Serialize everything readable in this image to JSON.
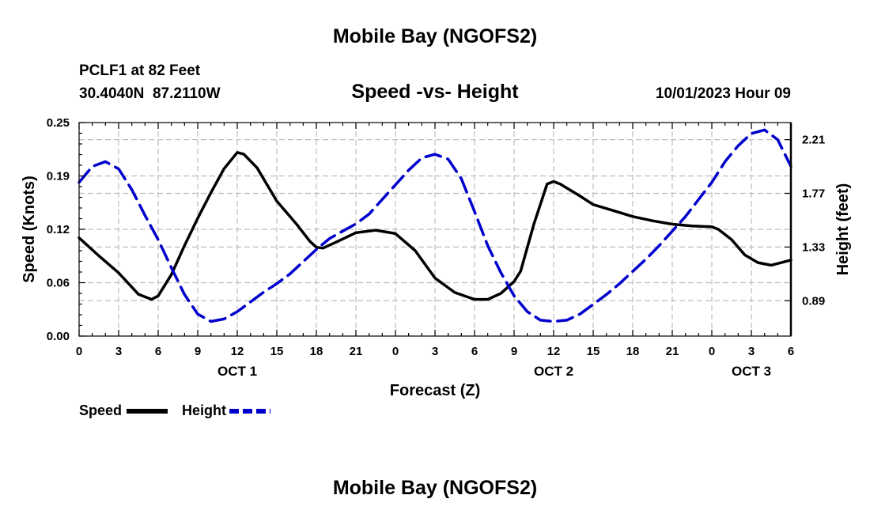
{
  "page": {
    "title_top": "Mobile Bay (NGOFS2)",
    "title_bottom": "Mobile Bay (NGOFS2)",
    "station": "PCLF1 at 82 Feet",
    "coords": "30.4040N  87.2110W",
    "date": "10/01/2023 Hour 09"
  },
  "chart_data": {
    "type": "line",
    "title": "Speed -vs- Height",
    "xlabel": "Forecast (Z)",
    "ylabel_left": "Speed (Knots)",
    "ylabel_right": "Height (feet)",
    "x_range_hours": [
      0,
      54
    ],
    "x_ticks": [
      {
        "h": 0,
        "label": "0"
      },
      {
        "h": 3,
        "label": "3"
      },
      {
        "h": 6,
        "label": "6"
      },
      {
        "h": 9,
        "label": "9"
      },
      {
        "h": 12,
        "label": "12"
      },
      {
        "h": 15,
        "label": "15"
      },
      {
        "h": 18,
        "label": "18"
      },
      {
        "h": 21,
        "label": "21"
      },
      {
        "h": 24,
        "label": "0"
      },
      {
        "h": 27,
        "label": "3"
      },
      {
        "h": 30,
        "label": "6"
      },
      {
        "h": 33,
        "label": "9"
      },
      {
        "h": 36,
        "label": "12"
      },
      {
        "h": 39,
        "label": "15"
      },
      {
        "h": 42,
        "label": "18"
      },
      {
        "h": 45,
        "label": "21"
      },
      {
        "h": 48,
        "label": "0"
      },
      {
        "h": 51,
        "label": "3"
      },
      {
        "h": 54,
        "label": "6"
      }
    ],
    "day_labels": [
      {
        "h": 12,
        "label": "OCT 1"
      },
      {
        "h": 36,
        "label": "OCT 2"
      },
      {
        "h": 51,
        "label": "OCT 3"
      }
    ],
    "y_left": {
      "min": 0,
      "max": 0.25,
      "ticks": [
        {
          "v": 0,
          "label": "0.00"
        },
        {
          "v": 0.0625,
          "label": "0.06"
        },
        {
          "v": 0.125,
          "label": "0.12"
        },
        {
          "v": 0.1875,
          "label": "0.19"
        },
        {
          "v": 0.25,
          "label": "0.25"
        }
      ]
    },
    "y_right": {
      "min": 0.6,
      "max": 2.35,
      "ticks": [
        {
          "v": 0.89,
          "label": "0.89"
        },
        {
          "v": 1.33,
          "label": "1.33"
        },
        {
          "v": 1.77,
          "label": "1.77"
        },
        {
          "v": 2.21,
          "label": "2.21"
        }
      ]
    },
    "series": [
      {
        "name": "Speed",
        "axis": "left",
        "color": "#000000",
        "style": "solid",
        "x": [
          0,
          1.5,
          3,
          4.5,
          5.5,
          6,
          7,
          8,
          9,
          10,
          11,
          12,
          12.5,
          13.5,
          15,
          16.5,
          17.5,
          18,
          18.5,
          19.5,
          21,
          22.5,
          24,
          25.5,
          27,
          28.5,
          30,
          31,
          32,
          33,
          33.5,
          34.5,
          35.5,
          36,
          36.5,
          38,
          39,
          40.5,
          42,
          43.5,
          45,
          46.5,
          48,
          48.5,
          49.5,
          50.5,
          51.5,
          52.5,
          54
        ],
        "y": [
          0.115,
          0.094,
          0.074,
          0.049,
          0.043,
          0.047,
          0.072,
          0.106,
          0.138,
          0.168,
          0.196,
          0.215,
          0.213,
          0.197,
          0.158,
          0.131,
          0.111,
          0.104,
          0.103,
          0.11,
          0.121,
          0.124,
          0.12,
          0.1,
          0.068,
          0.051,
          0.043,
          0.043,
          0.05,
          0.064,
          0.076,
          0.131,
          0.178,
          0.181,
          0.178,
          0.164,
          0.154,
          0.147,
          0.14,
          0.135,
          0.131,
          0.129,
          0.128,
          0.125,
          0.113,
          0.095,
          0.086,
          0.083,
          0.089
        ]
      },
      {
        "name": "Height",
        "axis": "right",
        "color": "#0000cc",
        "style": "dashed",
        "x": [
          0,
          1,
          2,
          3,
          4,
          5,
          6,
          7,
          8,
          9,
          10,
          11,
          12,
          13,
          14,
          15,
          16,
          17,
          18,
          19,
          20,
          21,
          22,
          23,
          24,
          25,
          26,
          27,
          28,
          29,
          30,
          31,
          32,
          33,
          34,
          35,
          36,
          37,
          38,
          39,
          40,
          41,
          42,
          43,
          44,
          45,
          46,
          47,
          48,
          49,
          50,
          51,
          52,
          53,
          54
        ],
        "y": [
          1.86,
          1.99,
          2.03,
          1.97,
          1.8,
          1.59,
          1.39,
          1.16,
          0.94,
          0.78,
          0.72,
          0.74,
          0.8,
          0.88,
          0.96,
          1.03,
          1.11,
          1.21,
          1.31,
          1.4,
          1.46,
          1.52,
          1.6,
          1.72,
          1.84,
          1.96,
          2.06,
          2.09,
          2.05,
          1.89,
          1.62,
          1.34,
          1.12,
          0.93,
          0.8,
          0.73,
          0.72,
          0.73,
          0.78,
          0.86,
          0.94,
          1.03,
          1.13,
          1.23,
          1.34,
          1.46,
          1.58,
          1.72,
          1.86,
          2.03,
          2.16,
          2.26,
          2.29,
          2.21,
          1.99
        ]
      }
    ],
    "legend": {
      "placement": "bottom-left",
      "items": [
        {
          "label": "Speed",
          "color": "#000000",
          "style": "solid"
        },
        {
          "label": "Height",
          "color": "#0000cc",
          "style": "dashed"
        }
      ]
    },
    "grid": true
  }
}
